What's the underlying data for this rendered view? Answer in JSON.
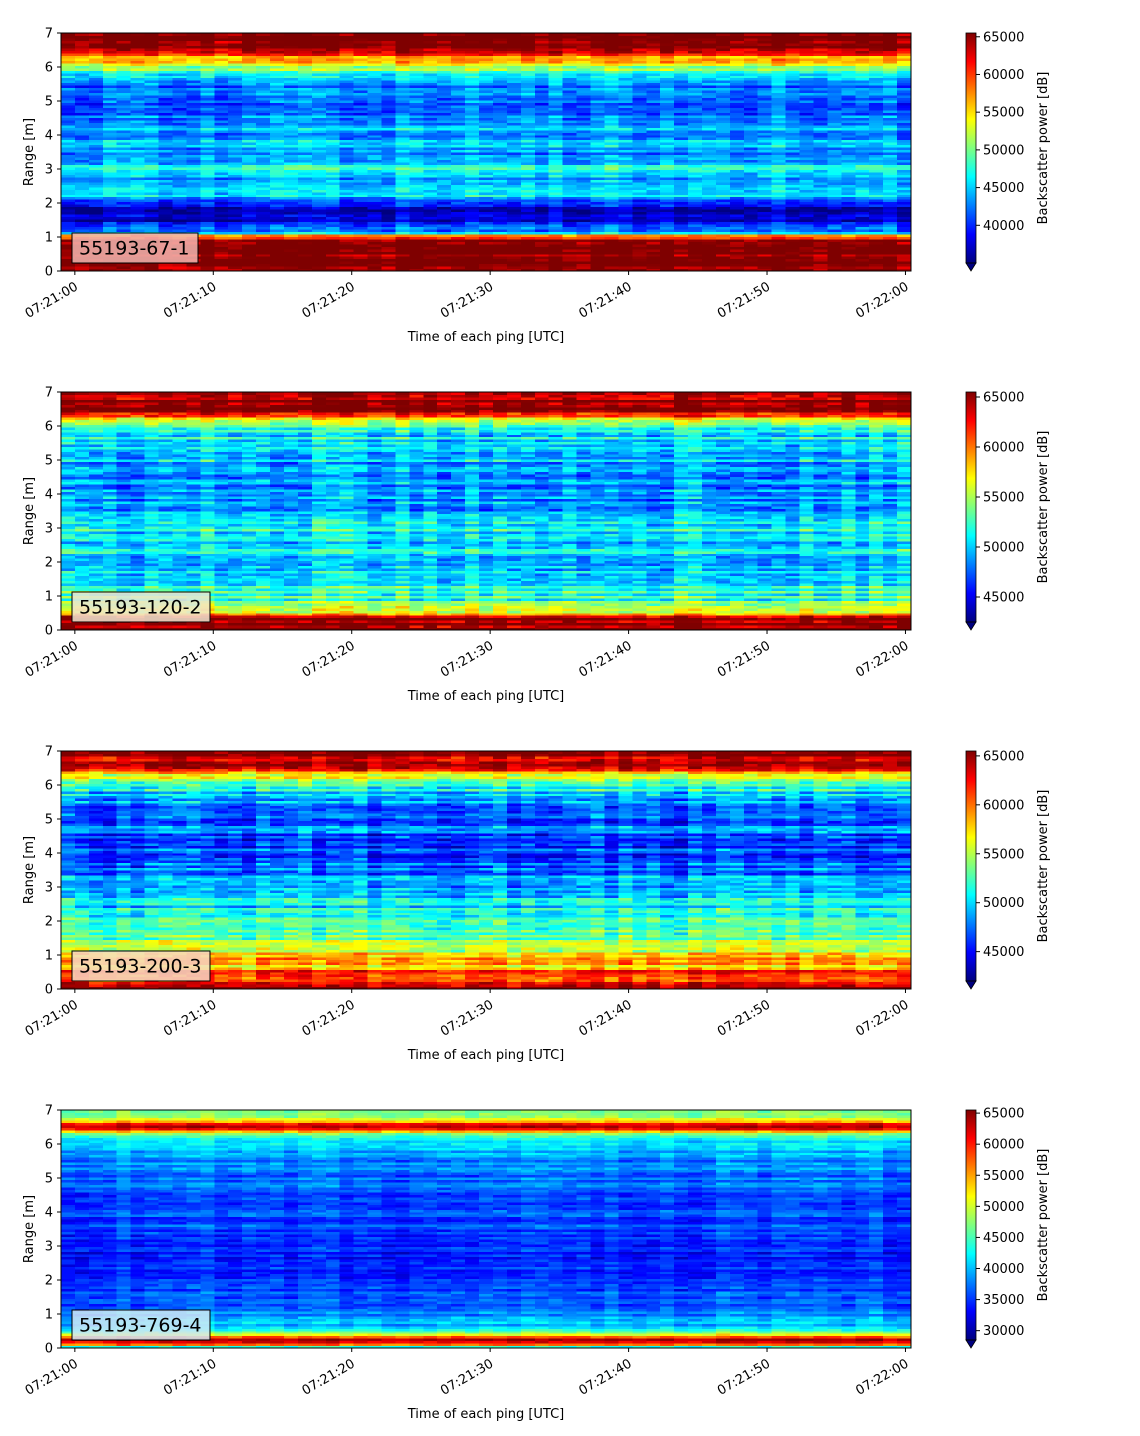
{
  "figure": {
    "background": "#ffffff",
    "colormap": "jet",
    "colormap_stops": [
      "#00007f",
      "#0000ff",
      "#007fff",
      "#00ffff",
      "#7fff7f",
      "#ffff00",
      "#ff7f00",
      "#ff0000",
      "#7f0000"
    ]
  },
  "chart_data": [
    {
      "type": "heatmap",
      "panel_label": "55193-67-1",
      "panel_label_bg": "#f2b6b0",
      "xlabel": "Time of each ping [UTC]",
      "ylabel": "Range [m]",
      "ylim": [
        0,
        7
      ],
      "yticks": [
        "0",
        "1",
        "2",
        "3",
        "4",
        "5",
        "6",
        "7"
      ],
      "xlim": [
        "07:21:00",
        "07:22:00"
      ],
      "xticks": [
        "07:21:00",
        "07:21:10",
        "07:21:20",
        "07:21:30",
        "07:21:40",
        "07:21:50",
        "07:22:00"
      ],
      "colorbar_label": "Backscatter power [dB]",
      "colorbar_range": [
        35000,
        65500
      ],
      "colorbar_ticks": [
        "40000",
        "45000",
        "50000",
        "55000",
        "60000",
        "65000"
      ],
      "colorbar_tick_values": [
        40000,
        45000,
        50000,
        55000,
        60000,
        65000
      ],
      "colorbar_extend": "min",
      "range_profile": [
        [
          0.0,
          65000
        ],
        [
          0.25,
          65500
        ],
        [
          0.5,
          65500
        ],
        [
          0.9,
          65500
        ],
        [
          1.05,
          58000
        ],
        [
          1.15,
          44000
        ],
        [
          1.4,
          38500
        ],
        [
          1.6,
          37500
        ],
        [
          1.8,
          37000
        ],
        [
          2.0,
          38500
        ],
        [
          2.2,
          45000
        ],
        [
          2.35,
          47500
        ],
        [
          2.5,
          46000
        ],
        [
          2.7,
          42000
        ],
        [
          2.9,
          47000
        ],
        [
          3.1,
          46500
        ],
        [
          3.3,
          42500
        ],
        [
          3.5,
          44000
        ],
        [
          3.8,
          45500
        ],
        [
          4.0,
          42500
        ],
        [
          4.3,
          45000
        ],
        [
          4.6,
          43000
        ],
        [
          5.0,
          41500
        ],
        [
          5.3,
          42500
        ],
        [
          5.6,
          44000
        ],
        [
          5.9,
          48500
        ],
        [
          6.1,
          54000
        ],
        [
          6.3,
          58000
        ],
        [
          6.5,
          64000
        ],
        [
          6.7,
          65500
        ],
        [
          7.0,
          65500
        ]
      ],
      "noise_amplitude": 3500
    },
    {
      "type": "heatmap",
      "panel_label": "55193-120-2",
      "panel_label_bg": "#f0e6d0",
      "xlabel": "Time of each ping [UTC]",
      "ylabel": "Range [m]",
      "ylim": [
        0,
        7
      ],
      "yticks": [
        "0",
        "1",
        "2",
        "3",
        "4",
        "5",
        "6",
        "7"
      ],
      "xlim": [
        "07:21:00",
        "07:22:00"
      ],
      "xticks": [
        "07:21:00",
        "07:21:10",
        "07:21:20",
        "07:21:30",
        "07:21:40",
        "07:21:50",
        "07:22:00"
      ],
      "colorbar_label": "Backscatter power [dB]",
      "colorbar_range": [
        42500,
        65500
      ],
      "colorbar_ticks": [
        "45000",
        "50000",
        "55000",
        "60000",
        "65000"
      ],
      "colorbar_tick_values": [
        45000,
        50000,
        55000,
        60000,
        65000
      ],
      "colorbar_extend": "min",
      "range_profile": [
        [
          0.0,
          65500
        ],
        [
          0.3,
          65500
        ],
        [
          0.45,
          62000
        ],
        [
          0.55,
          55000
        ],
        [
          0.8,
          53500
        ],
        [
          1.1,
          52000
        ],
        [
          1.4,
          51000
        ],
        [
          1.7,
          50500
        ],
        [
          2.0,
          50000
        ],
        [
          2.3,
          51000
        ],
        [
          2.6,
          50000
        ],
        [
          2.9,
          51500
        ],
        [
          3.2,
          52000
        ],
        [
          3.4,
          49000
        ],
        [
          3.7,
          50000
        ],
        [
          4.0,
          48500
        ],
        [
          4.3,
          49500
        ],
        [
          4.7,
          49000
        ],
        [
          5.0,
          50000
        ],
        [
          5.4,
          50500
        ],
        [
          5.8,
          51500
        ],
        [
          6.1,
          54000
        ],
        [
          6.3,
          61000
        ],
        [
          6.5,
          65500
        ],
        [
          7.0,
          65500
        ]
      ],
      "noise_amplitude": 3200
    },
    {
      "type": "heatmap",
      "panel_label": "55193-200-3",
      "panel_label_bg": "#f6dcc6",
      "xlabel": "Time of each ping [UTC]",
      "ylabel": "Range [m]",
      "ylim": [
        0,
        7
      ],
      "yticks": [
        "0",
        "1",
        "2",
        "3",
        "4",
        "5",
        "6",
        "7"
      ],
      "xlim": [
        "07:21:00",
        "07:22:00"
      ],
      "xticks": [
        "07:21:00",
        "07:21:10",
        "07:21:20",
        "07:21:30",
        "07:21:40",
        "07:21:50",
        "07:22:00"
      ],
      "colorbar_label": "Backscatter power [dB]",
      "colorbar_range": [
        42000,
        65500
      ],
      "colorbar_ticks": [
        "45000",
        "50000",
        "55000",
        "60000",
        "65000"
      ],
      "colorbar_tick_values": [
        45000,
        50000,
        55000,
        60000,
        65000
      ],
      "colorbar_extend": "min",
      "range_profile": [
        [
          0.0,
          65500
        ],
        [
          0.15,
          64000
        ],
        [
          0.3,
          60000
        ],
        [
          0.5,
          62000
        ],
        [
          0.7,
          58000
        ],
        [
          0.9,
          60000
        ],
        [
          1.1,
          56000
        ],
        [
          1.4,
          54000
        ],
        [
          1.7,
          53000
        ],
        [
          2.0,
          51500
        ],
        [
          2.3,
          50500
        ],
        [
          2.6,
          51000
        ],
        [
          2.9,
          49500
        ],
        [
          3.2,
          48500
        ],
        [
          3.5,
          47500
        ],
        [
          3.8,
          47000
        ],
        [
          4.1,
          46500
        ],
        [
          4.5,
          47000
        ],
        [
          4.9,
          47500
        ],
        [
          5.3,
          48000
        ],
        [
          5.7,
          49500
        ],
        [
          6.0,
          52000
        ],
        [
          6.3,
          57000
        ],
        [
          6.5,
          62000
        ],
        [
          6.7,
          65000
        ],
        [
          7.0,
          64000
        ]
      ],
      "noise_amplitude": 3200
    },
    {
      "type": "heatmap",
      "panel_label": "55193-769-4",
      "panel_label_bg": "#d0e6f6",
      "xlabel": "Time of each ping [UTC]",
      "ylabel": "Range [m]",
      "ylim": [
        0,
        7
      ],
      "yticks": [
        "0",
        "1",
        "2",
        "3",
        "4",
        "5",
        "6",
        "7"
      ],
      "xlim": [
        "07:21:00",
        "07:22:00"
      ],
      "xticks": [
        "07:21:00",
        "07:21:10",
        "07:21:20",
        "07:21:30",
        "07:21:40",
        "07:21:50",
        "07:22:00"
      ],
      "colorbar_label": "Backscatter power [dB]",
      "colorbar_range": [
        28500,
        65500
      ],
      "colorbar_ticks": [
        "30000",
        "35000",
        "40000",
        "45000",
        "50000",
        "55000",
        "60000",
        "65000"
      ],
      "colorbar_tick_values": [
        30000,
        35000,
        40000,
        45000,
        50000,
        55000,
        60000,
        65000
      ],
      "colorbar_extend": "min",
      "range_profile": [
        [
          0.0,
          40000
        ],
        [
          0.15,
          62000
        ],
        [
          0.25,
          65500
        ],
        [
          0.35,
          55000
        ],
        [
          0.5,
          44000
        ],
        [
          0.7,
          40000
        ],
        [
          1.0,
          37500
        ],
        [
          1.4,
          36000
        ],
        [
          1.8,
          35000
        ],
        [
          2.2,
          34500
        ],
        [
          2.6,
          34000
        ],
        [
          3.0,
          34500
        ],
        [
          3.4,
          35000
        ],
        [
          3.8,
          35500
        ],
        [
          4.2,
          36000
        ],
        [
          4.6,
          36500
        ],
        [
          5.0,
          37000
        ],
        [
          5.5,
          38000
        ],
        [
          6.0,
          40000
        ],
        [
          6.3,
          45000
        ],
        [
          6.45,
          62000
        ],
        [
          6.55,
          65500
        ],
        [
          6.7,
          50000
        ],
        [
          7.0,
          46000
        ]
      ],
      "noise_amplitude": 3000
    }
  ]
}
